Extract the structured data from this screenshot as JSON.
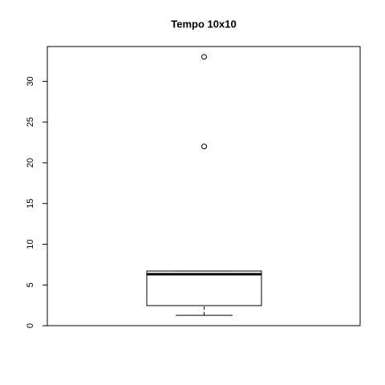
{
  "chart_data": {
    "type": "boxplot",
    "title": "Tempo 10x10",
    "min": 1.28,
    "q1": 2.47,
    "median": 6.32,
    "q3": 6.71,
    "max": 6.71,
    "outliers": [
      22.0,
      33.0
    ],
    "ylim": [
      0.01,
      34.27
    ],
    "yticks": [
      0,
      5,
      10,
      15,
      20,
      25,
      30
    ]
  }
}
